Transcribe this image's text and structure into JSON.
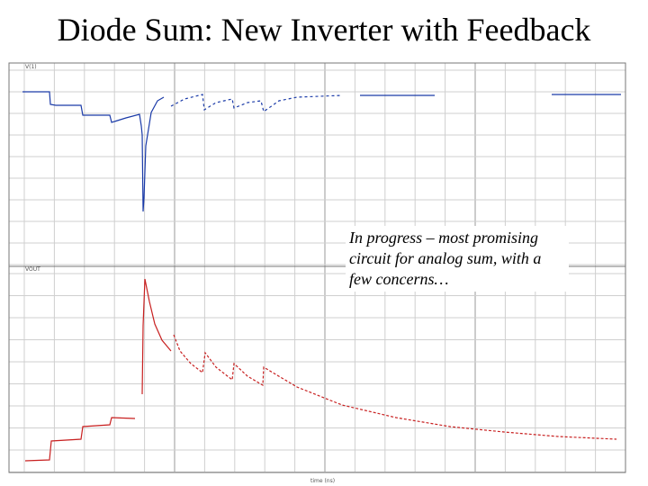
{
  "header": {
    "title": "Diode Sum: New Inverter with Feedback"
  },
  "note": {
    "text": "In progress – most promising circuit for analog sum, with a few concerns…"
  },
  "plot": {
    "x_axis_label": "time (ns)"
  }
}
